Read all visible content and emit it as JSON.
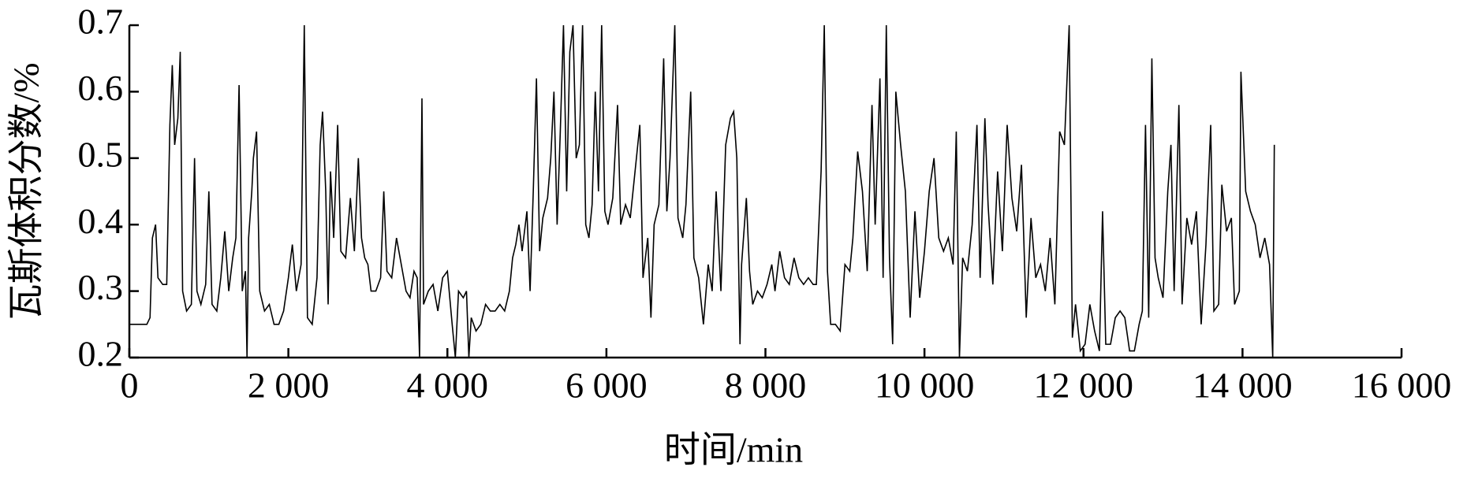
{
  "chart_data": {
    "type": "line",
    "xlabel": "时间/min",
    "ylabel": "瓦斯体积分数/%",
    "color": "#000000",
    "xlim": [
      0,
      16000
    ],
    "ylim": [
      0.2,
      0.7
    ],
    "xticks": [
      0,
      {
        "value": 2000,
        "label": "2 000"
      },
      {
        "value": 4000,
        "label": "4 000"
      },
      {
        "value": 6000,
        "label": "6 000"
      },
      {
        "value": 8000,
        "label": "8 000"
      },
      {
        "value": 10000,
        "label": "10 000"
      },
      {
        "value": 12000,
        "label": "12 000"
      },
      {
        "value": 14000,
        "label": "14 000"
      },
      {
        "value": 16000,
        "label": "16 000"
      }
    ],
    "yticks": [
      0.2,
      0.3,
      0.4,
      0.5,
      0.6,
      0.7
    ],
    "x": [
      0,
      120,
      220,
      260,
      290,
      330,
      360,
      420,
      470,
      510,
      540,
      570,
      610,
      640,
      670,
      720,
      780,
      820,
      850,
      900,
      960,
      1000,
      1040,
      1100,
      1150,
      1200,
      1250,
      1300,
      1340,
      1380,
      1420,
      1460,
      1480,
      1500,
      1540,
      1560,
      1600,
      1640,
      1700,
      1760,
      1820,
      1880,
      1940,
      2000,
      2050,
      2100,
      2160,
      2200,
      2240,
      2300,
      2360,
      2400,
      2430,
      2470,
      2500,
      2530,
      2570,
      2620,
      2660,
      2720,
      2780,
      2830,
      2880,
      2920,
      2960,
      3000,
      3040,
      3100,
      3160,
      3200,
      3240,
      3300,
      3360,
      3420,
      3480,
      3530,
      3580,
      3620,
      3650,
      3680,
      3700,
      3760,
      3820,
      3880,
      3940,
      4000,
      4060,
      4100,
      4140,
      4200,
      4240,
      4270,
      4300,
      4360,
      4420,
      4480,
      4540,
      4600,
      4660,
      4720,
      4780,
      4820,
      4860,
      4900,
      4940,
      5000,
      5040,
      5080,
      5120,
      5160,
      5200,
      5260,
      5300,
      5340,
      5380,
      5420,
      5460,
      5500,
      5540,
      5580,
      5620,
      5660,
      5700,
      5740,
      5780,
      5820,
      5860,
      5900,
      5940,
      5980,
      6020,
      6080,
      6140,
      6180,
      6240,
      6300,
      6360,
      6420,
      6460,
      6520,
      6560,
      6600,
      6660,
      6720,
      6760,
      6800,
      6860,
      6900,
      6960,
      7000,
      7060,
      7100,
      7160,
      7220,
      7280,
      7330,
      7380,
      7440,
      7500,
      7560,
      7600,
      7640,
      7680,
      7700,
      7760,
      7800,
      7840,
      7900,
      7960,
      8020,
      8080,
      8120,
      8180,
      8240,
      8300,
      8360,
      8420,
      8480,
      8540,
      8600,
      8640,
      8700,
      8740,
      8780,
      8820,
      8880,
      8940,
      9000,
      9060,
      9100,
      9160,
      9220,
      9280,
      9340,
      9380,
      9440,
      9480,
      9520,
      9560,
      9600,
      9640,
      9700,
      9760,
      9820,
      9880,
      9940,
      10000,
      10060,
      10120,
      10180,
      10240,
      10300,
      10360,
      10400,
      10440,
      10480,
      10540,
      10600,
      10660,
      10700,
      10760,
      10800,
      10860,
      10920,
      10980,
      11040,
      11100,
      11160,
      11220,
      11280,
      11340,
      11400,
      11460,
      11520,
      11580,
      11640,
      11700,
      11760,
      11820,
      11860,
      11900,
      11960,
      12020,
      12080,
      12140,
      12200,
      12240,
      12280,
      12340,
      12400,
      12460,
      12520,
      12580,
      12640,
      12700,
      12740,
      12780,
      12820,
      12860,
      12900,
      12940,
      13000,
      13060,
      13100,
      13140,
      13200,
      13240,
      13300,
      13360,
      13420,
      13480,
      13540,
      13600,
      13640,
      13700,
      13740,
      13800,
      13860,
      13900,
      13960,
      13980,
      14040,
      14100,
      14160,
      14220,
      14280,
      14340,
      14380,
      14400
    ],
    "values": [
      0.25,
      0.25,
      0.25,
      0.26,
      0.38,
      0.4,
      0.32,
      0.31,
      0.31,
      0.55,
      0.64,
      0.52,
      0.56,
      0.66,
      0.3,
      0.27,
      0.28,
      0.5,
      0.3,
      0.28,
      0.31,
      0.45,
      0.28,
      0.27,
      0.32,
      0.39,
      0.3,
      0.35,
      0.38,
      0.61,
      0.3,
      0.33,
      0.2,
      0.38,
      0.45,
      0.5,
      0.54,
      0.3,
      0.27,
      0.28,
      0.25,
      0.25,
      0.27,
      0.32,
      0.37,
      0.3,
      0.34,
      0.7,
      0.26,
      0.25,
      0.32,
      0.52,
      0.57,
      0.45,
      0.28,
      0.48,
      0.38,
      0.55,
      0.36,
      0.35,
      0.44,
      0.36,
      0.5,
      0.38,
      0.35,
      0.34,
      0.3,
      0.3,
      0.32,
      0.45,
      0.33,
      0.32,
      0.38,
      0.34,
      0.3,
      0.29,
      0.33,
      0.32,
      0.2,
      0.59,
      0.28,
      0.3,
      0.31,
      0.27,
      0.32,
      0.33,
      0.25,
      0.2,
      0.3,
      0.29,
      0.3,
      0.2,
      0.26,
      0.24,
      0.25,
      0.28,
      0.27,
      0.27,
      0.28,
      0.27,
      0.3,
      0.35,
      0.37,
      0.4,
      0.36,
      0.42,
      0.3,
      0.45,
      0.62,
      0.36,
      0.41,
      0.44,
      0.5,
      0.6,
      0.4,
      0.54,
      0.7,
      0.45,
      0.66,
      0.7,
      0.5,
      0.52,
      0.7,
      0.4,
      0.38,
      0.43,
      0.6,
      0.45,
      0.7,
      0.42,
      0.4,
      0.44,
      0.58,
      0.4,
      0.43,
      0.41,
      0.48,
      0.55,
      0.32,
      0.38,
      0.26,
      0.4,
      0.43,
      0.65,
      0.42,
      0.5,
      0.7,
      0.41,
      0.38,
      0.43,
      0.6,
      0.35,
      0.32,
      0.25,
      0.34,
      0.3,
      0.45,
      0.3,
      0.52,
      0.56,
      0.57,
      0.5,
      0.22,
      0.34,
      0.44,
      0.33,
      0.28,
      0.3,
      0.29,
      0.31,
      0.34,
      0.3,
      0.36,
      0.32,
      0.31,
      0.35,
      0.32,
      0.31,
      0.32,
      0.31,
      0.31,
      0.48,
      0.7,
      0.33,
      0.25,
      0.25,
      0.24,
      0.34,
      0.33,
      0.38,
      0.51,
      0.45,
      0.33,
      0.58,
      0.4,
      0.62,
      0.32,
      0.7,
      0.35,
      0.22,
      0.6,
      0.52,
      0.45,
      0.26,
      0.42,
      0.29,
      0.36,
      0.45,
      0.5,
      0.38,
      0.36,
      0.38,
      0.34,
      0.54,
      0.2,
      0.35,
      0.33,
      0.4,
      0.55,
      0.32,
      0.56,
      0.43,
      0.31,
      0.48,
      0.36,
      0.55,
      0.44,
      0.39,
      0.49,
      0.26,
      0.41,
      0.32,
      0.34,
      0.3,
      0.38,
      0.28,
      0.54,
      0.52,
      0.7,
      0.23,
      0.28,
      0.21,
      0.22,
      0.28,
      0.24,
      0.21,
      0.42,
      0.22,
      0.22,
      0.26,
      0.27,
      0.26,
      0.21,
      0.21,
      0.25,
      0.27,
      0.55,
      0.26,
      0.65,
      0.35,
      0.32,
      0.29,
      0.45,
      0.52,
      0.3,
      0.58,
      0.28,
      0.41,
      0.37,
      0.42,
      0.25,
      0.37,
      0.55,
      0.27,
      0.28,
      0.46,
      0.39,
      0.41,
      0.28,
      0.3,
      0.63,
      0.45,
      0.42,
      0.4,
      0.35,
      0.38,
      0.34,
      0.2,
      0.52
    ]
  }
}
